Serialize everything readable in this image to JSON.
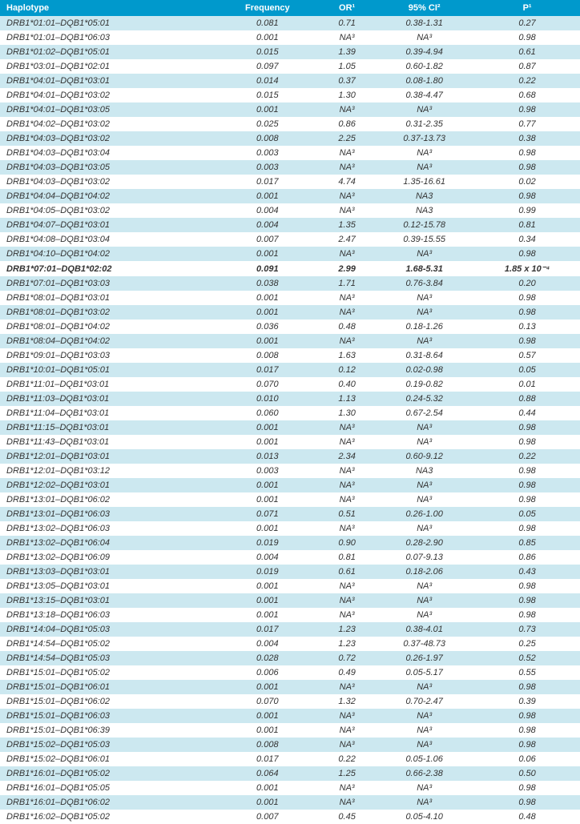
{
  "table": {
    "headers": [
      "Haplotype",
      "Frequency",
      "OR¹",
      "95% CI²",
      "P¹"
    ],
    "background_shaded": "#cce8f0",
    "background_plain": "#ffffff",
    "header_background": "#0099cc",
    "header_color": "#ffffff",
    "font_size": 11,
    "rows": [
      {
        "h": "DRB1*01:01–DQB1*05:01",
        "f": "0.081",
        "o": "0.71",
        "c": "0.38-1.31",
        "p": "0.27",
        "s": true,
        "b": false
      },
      {
        "h": "DRB1*01:01–DQB1*06:03",
        "f": "0.001",
        "o": "NA³",
        "c": "NA³",
        "p": "0.98",
        "s": false,
        "b": false
      },
      {
        "h": "DRB1*01:02–DQB1*05:01",
        "f": "0.015",
        "o": "1.39",
        "c": "0.39-4.94",
        "p": "0.61",
        "s": true,
        "b": false
      },
      {
        "h": "DRB1*03:01–DQB1*02:01",
        "f": "0.097",
        "o": "1.05",
        "c": "0.60-1.82",
        "p": "0.87",
        "s": false,
        "b": false
      },
      {
        "h": "DRB1*04:01–DQB1*03:01",
        "f": "0.014",
        "o": "0.37",
        "c": "0.08-1.80",
        "p": "0.22",
        "s": true,
        "b": false
      },
      {
        "h": "DRB1*04:01–DQB1*03:02",
        "f": "0.015",
        "o": "1.30",
        "c": "0.38-4.47",
        "p": "0.68",
        "s": false,
        "b": false
      },
      {
        "h": "DRB1*04:01–DQB1*03:05",
        "f": "0.001",
        "o": "NA³",
        "c": "NA³",
        "p": "0.98",
        "s": true,
        "b": false
      },
      {
        "h": "DRB1*04:02–DQB1*03:02",
        "f": "0.025",
        "o": "0.86",
        "c": "0.31-2.35",
        "p": "0.77",
        "s": false,
        "b": false
      },
      {
        "h": "DRB1*04:03–DQB1*03:02",
        "f": "0.008",
        "o": "2.25",
        "c": "0.37-13.73",
        "p": "0.38",
        "s": true,
        "b": false
      },
      {
        "h": "DRB1*04:03–DQB1*03:04",
        "f": "0.003",
        "o": "NA³",
        "c": "NA³",
        "p": "0.98",
        "s": false,
        "b": false
      },
      {
        "h": "DRB1*04:03–DQB1*03:05",
        "f": "0.003",
        "o": "NA³",
        "c": "NA³",
        "p": "0.98",
        "s": true,
        "b": false
      },
      {
        "h": "DRB1*04:03–DQB1*03:02",
        "f": "0.017",
        "o": "4.74",
        "c": "1.35-16.61",
        "p": "0.02",
        "s": false,
        "b": false
      },
      {
        "h": "DRB1*04:04–DQB1*04:02",
        "f": "0.001",
        "o": "NA³",
        "c": "NA3",
        "p": "0.98",
        "s": true,
        "b": false
      },
      {
        "h": "DRB1*04:05–DQB1*03:02",
        "f": "0.004",
        "o": "NA³",
        "c": "NA3",
        "p": "0.99",
        "s": false,
        "b": false
      },
      {
        "h": "DRB1*04:07–DQB1*03:01",
        "f": "0.004",
        "o": "1.35",
        "c": "0.12-15.78",
        "p": "0.81",
        "s": true,
        "b": false
      },
      {
        "h": "DRB1*04:08–DQB1*03:04",
        "f": "0.007",
        "o": "2.47",
        "c": "0.39-15.55",
        "p": "0.34",
        "s": false,
        "b": false
      },
      {
        "h": "DRB1*04:10–DQB1*04:02",
        "f": "0.001",
        "o": "NA³",
        "c": "NA³",
        "p": "0.98",
        "s": true,
        "b": false
      },
      {
        "h": "DRB1*07:01–DQB1*02:02",
        "f": "0.091",
        "o": "2.99",
        "c": "1.68-5.31",
        "p": "1.85 x 10⁻⁴",
        "s": false,
        "b": true
      },
      {
        "h": "DRB1*07:01–DQB1*03:03",
        "f": "0.038",
        "o": "1.71",
        "c": "0.76-3.84",
        "p": "0.20",
        "s": true,
        "b": false
      },
      {
        "h": "DRB1*08:01–DQB1*03:01",
        "f": "0.001",
        "o": "NA³",
        "c": "NA³",
        "p": "0.98",
        "s": false,
        "b": false
      },
      {
        "h": "DRB1*08:01–DQB1*03:02",
        "f": "0.001",
        "o": "NA³",
        "c": "NA³",
        "p": "0.98",
        "s": true,
        "b": false
      },
      {
        "h": "DRB1*08:01–DQB1*04:02",
        "f": "0.036",
        "o": "0.48",
        "c": "0.18-1.26",
        "p": "0.13",
        "s": false,
        "b": false
      },
      {
        "h": "DRB1*08:04–DQB1*04:02",
        "f": "0.001",
        "o": "NA³",
        "c": "NA³",
        "p": "0.98",
        "s": true,
        "b": false
      },
      {
        "h": "DRB1*09:01–DQB1*03:03",
        "f": "0.008",
        "o": "1.63",
        "c": "0.31-8.64",
        "p": "0.57",
        "s": false,
        "b": false
      },
      {
        "h": "DRB1*10:01–DQB1*05:01",
        "f": "0.017",
        "o": "0.12",
        "c": "0.02-0.98",
        "p": "0.05",
        "s": true,
        "b": false
      },
      {
        "h": "DRB1*11:01–DQB1*03:01",
        "f": "0.070",
        "o": "0.40",
        "c": "0.19-0.82",
        "p": "0.01",
        "s": false,
        "b": false
      },
      {
        "h": "DRB1*11:03–DQB1*03:01",
        "f": "0.010",
        "o": "1.13",
        "c": "0.24-5.32",
        "p": "0.88",
        "s": true,
        "b": false
      },
      {
        "h": "DRB1*11:04–DQB1*03:01",
        "f": "0.060",
        "o": "1.30",
        "c": "0.67-2.54",
        "p": "0.44",
        "s": false,
        "b": false
      },
      {
        "h": "DRB1*11:15–DQB1*03:01",
        "f": "0.001",
        "o": "NA³",
        "c": "NA³",
        "p": "0.98",
        "s": true,
        "b": false
      },
      {
        "h": "DRB1*11:43–DQB1*03:01",
        "f": "0.001",
        "o": "NA³",
        "c": "NA³",
        "p": "0.98",
        "s": false,
        "b": false
      },
      {
        "h": "DRB1*12:01–DQB1*03:01",
        "f": "0.013",
        "o": "2.34",
        "c": "0.60-9.12",
        "p": "0.22",
        "s": true,
        "b": false
      },
      {
        "h": "DRB1*12:01–DQB1*03:12",
        "f": "0.003",
        "o": "NA³",
        "c": "NA3",
        "p": "0.98",
        "s": false,
        "b": false
      },
      {
        "h": "DRB1*12:02–DQB1*03:01",
        "f": "0.001",
        "o": "NA³",
        "c": "NA³",
        "p": "0.98",
        "s": true,
        "b": false
      },
      {
        "h": "DRB1*13:01–DQB1*06:02",
        "f": "0.001",
        "o": "NA³",
        "c": "NA³",
        "p": "0.98",
        "s": false,
        "b": false
      },
      {
        "h": "DRB1*13:01–DQB1*06:03",
        "f": "0.071",
        "o": "0.51",
        "c": "0.26-1.00",
        "p": "0.05",
        "s": true,
        "b": false
      },
      {
        "h": "DRB1*13:02–DQB1*06:03",
        "f": "0.001",
        "o": "NA³",
        "c": "NA³",
        "p": "0.98",
        "s": false,
        "b": false
      },
      {
        "h": "DRB1*13:02–DQB1*06:04",
        "f": "0.019",
        "o": "0.90",
        "c": "0.28-2.90",
        "p": "0.85",
        "s": true,
        "b": false
      },
      {
        "h": "DRB1*13:02–DQB1*06:09",
        "f": "0.004",
        "o": "0.81",
        "c": "0.07-9.13",
        "p": "0.86",
        "s": false,
        "b": false
      },
      {
        "h": "DRB1*13:03–DQB1*03:01",
        "f": "0.019",
        "o": "0.61",
        "c": "0.18-2.06",
        "p": "0.43",
        "s": true,
        "b": false
      },
      {
        "h": "DRB1*13:05–DQB1*03:01",
        "f": "0.001",
        "o": "NA³",
        "c": "NA³",
        "p": "0.98",
        "s": false,
        "b": false
      },
      {
        "h": "DRB1*13:15–DQB1*03:01",
        "f": "0.001",
        "o": "NA³",
        "c": "NA³",
        "p": "0.98",
        "s": true,
        "b": false
      },
      {
        "h": "DRB1*13:18–DQB1*06:03",
        "f": "0.001",
        "o": "NA³",
        "c": "NA³",
        "p": "0.98",
        "s": false,
        "b": false
      },
      {
        "h": "DRB1*14:04–DQB1*05:03",
        "f": "0.017",
        "o": "1.23",
        "c": "0.38-4.01",
        "p": "0.73",
        "s": true,
        "b": false
      },
      {
        "h": "DRB1*14:54–DQB1*05:02",
        "f": "0.004",
        "o": "1.23",
        "c": "0.37-48.73",
        "p": "0.25",
        "s": false,
        "b": false
      },
      {
        "h": "DRB1*14:54–DQB1*05:03",
        "f": "0.028",
        "o": "0.72",
        "c": "0.26-1.97",
        "p": "0.52",
        "s": true,
        "b": false
      },
      {
        "h": "DRB1*15:01–DQB1*05:02",
        "f": "0.006",
        "o": "0.49",
        "c": "0.05-5.17",
        "p": "0.55",
        "s": false,
        "b": false
      },
      {
        "h": "DRB1*15:01–DQB1*06:01",
        "f": "0.001",
        "o": "NA³",
        "c": "NA³",
        "p": "0.98",
        "s": true,
        "b": false
      },
      {
        "h": "DRB1*15:01–DQB1*06:02",
        "f": "0.070",
        "o": "1.32",
        "c": "0.70-2.47",
        "p": "0.39",
        "s": false,
        "b": false
      },
      {
        "h": "DRB1*15:01–DQB1*06:03",
        "f": "0.001",
        "o": "NA³",
        "c": "NA³",
        "p": "0.98",
        "s": true,
        "b": false
      },
      {
        "h": "DRB1*15:01–DQB1*06:39",
        "f": "0.001",
        "o": "NA³",
        "c": "NA³",
        "p": "0.98",
        "s": false,
        "b": false
      },
      {
        "h": "DRB1*15:02–DQB1*05:03",
        "f": "0.008",
        "o": "NA³",
        "c": "NA³",
        "p": "0.98",
        "s": true,
        "b": false
      },
      {
        "h": "DRB1*15:02–DQB1*06:01",
        "f": "0.017",
        "o": "0.22",
        "c": "0.05-1.06",
        "p": "0.06",
        "s": false,
        "b": false
      },
      {
        "h": "DRB1*16:01–DQB1*05:02",
        "f": "0.064",
        "o": "1.25",
        "c": "0.66-2.38",
        "p": "0.50",
        "s": true,
        "b": false
      },
      {
        "h": "DRB1*16:01–DQB1*05:05",
        "f": "0.001",
        "o": "NA³",
        "c": "NA³",
        "p": "0.98",
        "s": false,
        "b": false
      },
      {
        "h": "DRB1*16:01–DQB1*06:02",
        "f": "0.001",
        "o": "NA³",
        "c": "NA³",
        "p": "0.98",
        "s": true,
        "b": false
      },
      {
        "h": "DRB1*16:02–DQB1*05:02",
        "f": "0.007",
        "o": "0.45",
        "c": "0.05-4.10",
        "p": "0.48",
        "s": false,
        "b": false
      }
    ]
  }
}
